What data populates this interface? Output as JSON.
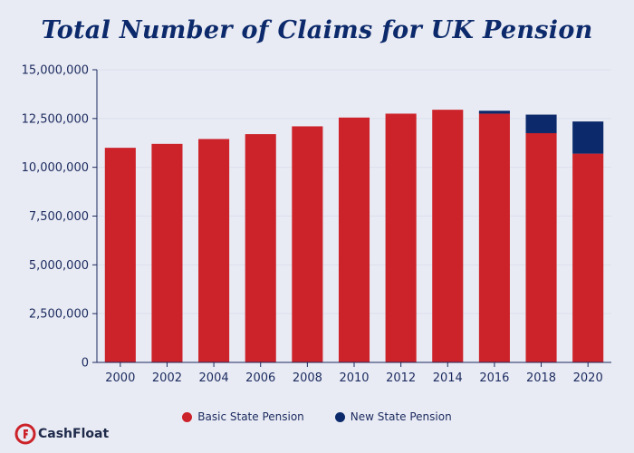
{
  "chart_data": {
    "type": "bar",
    "stacked": true,
    "title": "Total Number of Claims for UK Pension",
    "categories": [
      "2000",
      "2002",
      "2004",
      "2006",
      "2008",
      "2010",
      "2012",
      "2014",
      "2016",
      "2018",
      "2020"
    ],
    "series": [
      {
        "name": "Basic State Pension",
        "color": "#cc2229",
        "values": [
          11000000,
          11200000,
          11450000,
          11700000,
          12100000,
          12550000,
          12750000,
          12950000,
          12750000,
          11750000,
          10700000
        ]
      },
      {
        "name": "New State Pension",
        "color": "#0c2a6b",
        "values": [
          0,
          0,
          0,
          0,
          0,
          0,
          0,
          0,
          150000,
          950000,
          1650000
        ]
      }
    ],
    "ylim": [
      0,
      15000000
    ],
    "yticks": [
      0,
      2500000,
      5000000,
      7500000,
      10000000,
      12500000,
      15000000
    ],
    "ytick_labels": [
      "0",
      "2,500,000",
      "5,000,000",
      "7,500,000",
      "10,000,000",
      "12,500,000",
      "15,000,000"
    ],
    "xlabel": "",
    "ylabel": "",
    "grid": true,
    "legend_position": "bottom-center"
  },
  "logo": {
    "text": "CashFloat",
    "accent_color": "#cc2229"
  }
}
